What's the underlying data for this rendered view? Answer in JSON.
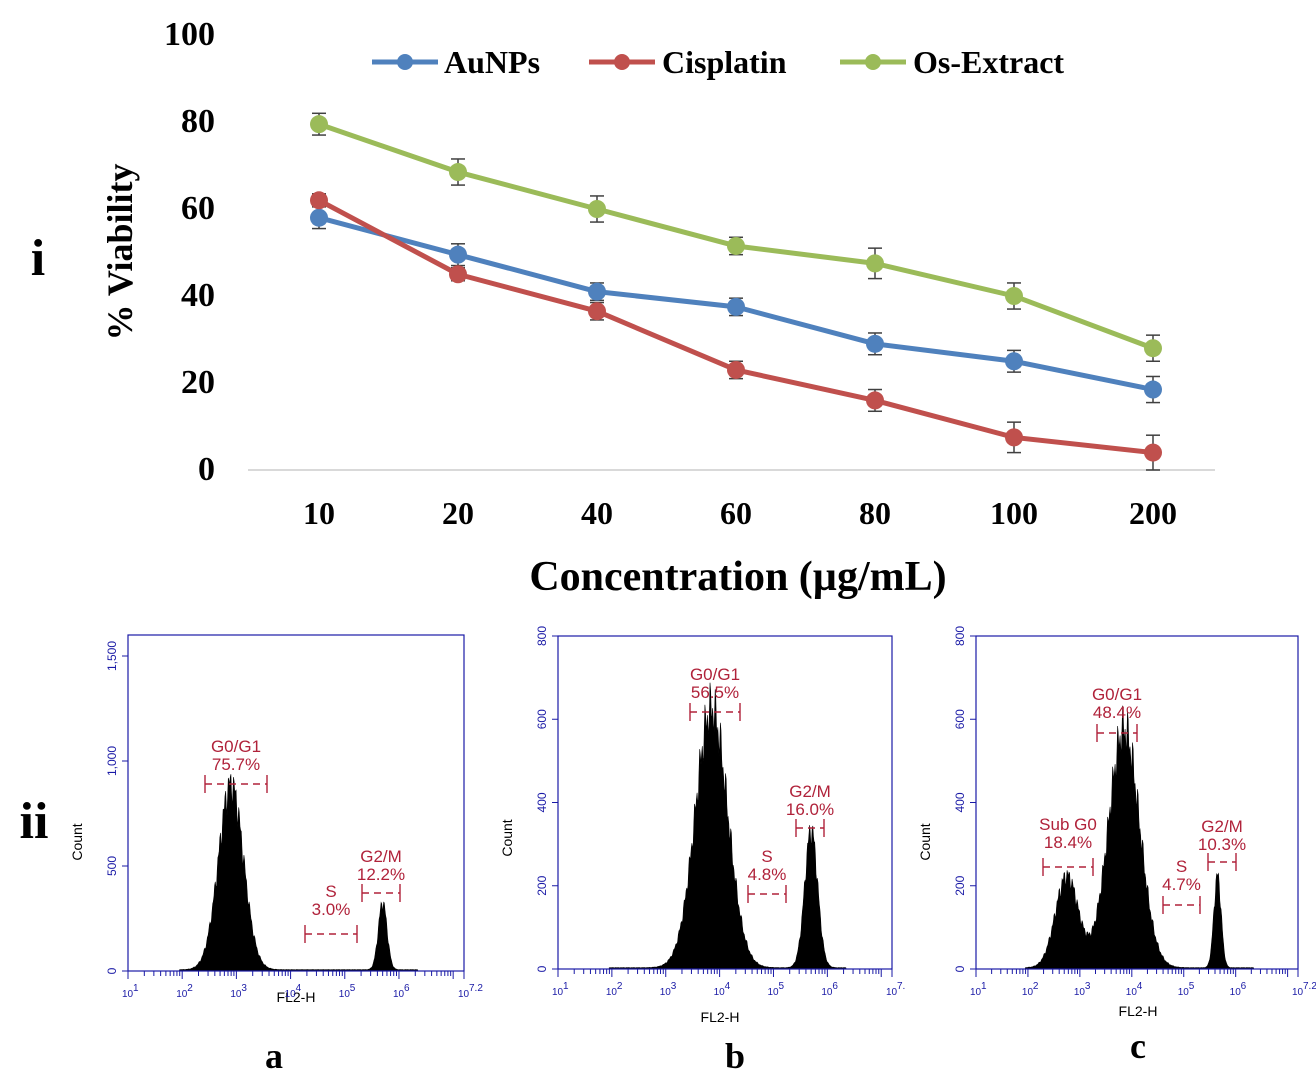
{
  "panel_labels": {
    "top": "i",
    "bottom": "ii"
  },
  "subfigure_labels": [
    "a",
    "b",
    "c"
  ],
  "chart_data": [
    {
      "type": "line",
      "title": "",
      "xlabel": "Concentration (µg/mL)",
      "ylabel": "% Viability",
      "categories": [
        "10",
        "20",
        "40",
        "60",
        "80",
        "100",
        "200"
      ],
      "ylim": [
        0,
        100
      ],
      "yticks": [
        "0",
        "20",
        "40",
        "60",
        "80",
        "100"
      ],
      "legend_position": "top",
      "grid": false,
      "series": [
        {
          "name": "AuNPs",
          "color": "#4f81bd",
          "values": [
            58,
            49.5,
            41,
            37.5,
            29,
            25,
            18.5
          ],
          "errors": [
            2.5,
            2.5,
            2,
            2,
            2.5,
            2.5,
            3
          ]
        },
        {
          "name": "Cisplatin",
          "color": "#c0504d",
          "values": [
            62,
            45,
            36.5,
            23,
            16,
            7.5,
            4
          ],
          "errors": [
            1.5,
            1.5,
            2,
            2,
            2.5,
            3.5,
            4
          ]
        },
        {
          "name": "Os-Extract",
          "color": "#9bbb59",
          "values": [
            79.5,
            68.5,
            60,
            51.5,
            47.5,
            40,
            28
          ],
          "errors": [
            2.5,
            3,
            3,
            2,
            3.5,
            3,
            3
          ]
        }
      ]
    },
    {
      "type": "area",
      "panel": "a",
      "xlabel": "FL2-H",
      "ylabel": "Count",
      "yticks": [
        "0",
        "500",
        "1,000",
        "1,500"
      ],
      "ylim": [
        0,
        1600
      ],
      "xscale": "log",
      "xtick_exponents": [
        "1",
        "2",
        "3",
        "4",
        "5",
        "6",
        "7.2"
      ],
      "peaks": [
        {
          "log_center": 2.9,
          "log_width": 0.23,
          "height": 880
        },
        {
          "log_center": 5.7,
          "log_width": 0.08,
          "height": 320
        }
      ],
      "gates": [
        {
          "name": "G0/G1",
          "percent": "75.7%"
        },
        {
          "name": "S",
          "percent": "3.0%"
        },
        {
          "name": "G2/M",
          "percent": "12.2%"
        }
      ]
    },
    {
      "type": "area",
      "panel": "b",
      "xlabel": "FL2-H",
      "ylabel": "Count",
      "yticks": [
        "0",
        "200",
        "400",
        "600",
        "800"
      ],
      "ylim": [
        0,
        800
      ],
      "xscale": "log",
      "xtick_exponents": [
        "1",
        "2",
        "3",
        "4",
        "5",
        "6",
        "7."
      ],
      "peaks": [
        {
          "log_center": 3.85,
          "log_width": 0.3,
          "height": 620
        },
        {
          "log_center": 5.7,
          "log_width": 0.12,
          "height": 330
        }
      ],
      "gates": [
        {
          "name": "G0/G1",
          "percent": "56.5%"
        },
        {
          "name": "S",
          "percent": "4.8%"
        },
        {
          "name": "G2/M",
          "percent": "16.0%"
        }
      ]
    },
    {
      "type": "area",
      "panel": "c",
      "xlabel": "FL2-H",
      "ylabel": "Count",
      "yticks": [
        "0",
        "200",
        "400",
        "600",
        "800"
      ],
      "ylim": [
        0,
        800
      ],
      "xscale": "log",
      "xtick_exponents": [
        "1",
        "2",
        "3",
        "4",
        "5",
        "6",
        "7.2"
      ],
      "peaks": [
        {
          "log_center": 2.75,
          "log_width": 0.22,
          "height": 220
        },
        {
          "log_center": 3.85,
          "log_width": 0.3,
          "height": 570
        },
        {
          "log_center": 5.65,
          "log_width": 0.07,
          "height": 220
        }
      ],
      "gates": [
        {
          "name": "Sub G0",
          "percent": "18.4%"
        },
        {
          "name": "G0/G1",
          "percent": "48.4%"
        },
        {
          "name": "S",
          "percent": "4.7%"
        },
        {
          "name": "G2/M",
          "percent": "10.3%"
        }
      ]
    }
  ]
}
